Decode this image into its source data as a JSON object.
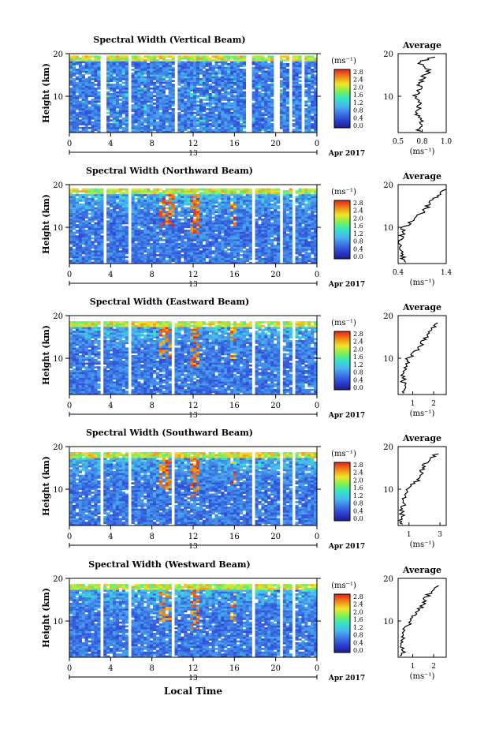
{
  "figure": {
    "xlabel": "Local Time",
    "date_label": "Apr 2017",
    "day_label": "13",
    "colorbar_unit": "(ms⁻¹)",
    "colorbar_ticks": [
      "2.8",
      "2.4",
      "2.0",
      "1.6",
      "1.2",
      "0.8",
      "0.4",
      "0.0"
    ],
    "avg_title": "Average",
    "avg_xlabel": "(ms⁻¹)",
    "ylabel": "Height (km)"
  },
  "chart_data": [
    {
      "type": "heatmap",
      "title": "Spectral Width (Vertical Beam)",
      "ylabel": "Height (km)",
      "x_ticks": [
        "0",
        "4",
        "8",
        "12",
        "16",
        "20",
        "0"
      ],
      "xlim": [
        0,
        24
      ],
      "ylim": [
        1.5,
        20
      ],
      "y_ticks": [
        "20",
        "10"
      ],
      "colorbar": {
        "min": 0.0,
        "max": 3.0,
        "unit": "ms^-1"
      },
      "data_gaps_hours": [
        [
          3.0,
          3.6
        ],
        [
          5.8,
          6.1
        ],
        [
          10.2,
          10.5
        ],
        [
          12.8,
          13.0
        ],
        [
          17.2,
          17.6
        ],
        [
          19.8,
          20.5
        ],
        [
          21.3,
          21.5
        ],
        [
          22.6,
          22.9
        ]
      ],
      "top_height_km": 19.5,
      "average": {
        "xlim": [
          0.5,
          1.0
        ],
        "x_ticks": [
          "0.5",
          "0.8",
          "1.0"
        ],
        "x_tick_values": [
          0.5,
          0.75,
          1.0
        ],
        "heights": [
          2,
          4,
          6,
          8,
          10,
          12,
          14,
          16,
          18,
          19.5
        ],
        "values": [
          0.72,
          0.74,
          0.7,
          0.73,
          0.68,
          0.72,
          0.74,
          0.82,
          0.72,
          0.9
        ]
      }
    },
    {
      "type": "heatmap",
      "title": "Spectral Width (Northward Beam)",
      "ylabel": "Height (km)",
      "x_ticks": [
        "0",
        "4",
        "8",
        "12",
        "16",
        "20",
        "0"
      ],
      "xlim": [
        0,
        24
      ],
      "ylim": [
        1.5,
        20
      ],
      "y_ticks": [
        "20",
        "10"
      ],
      "colorbar": {
        "min": 0.0,
        "max": 3.0,
        "unit": "ms^-1"
      },
      "data_gaps_hours": [
        [
          3.3,
          3.6
        ],
        [
          5.8,
          6.1
        ],
        [
          17.8,
          18.1
        ],
        [
          20.3,
          20.6
        ],
        [
          21.5,
          21.8
        ]
      ],
      "top_height_km": 19,
      "average": {
        "xlim": [
          0.4,
          1.4
        ],
        "x_ticks": [
          "0.4",
          "1.4"
        ],
        "x_tick_values": [
          0.4,
          1.4
        ],
        "heights": [
          2,
          4,
          6,
          8,
          10,
          12,
          14,
          16,
          18,
          19
        ],
        "values": [
          0.5,
          0.48,
          0.45,
          0.47,
          0.52,
          0.75,
          0.95,
          1.1,
          1.3,
          1.35
        ]
      }
    },
    {
      "type": "heatmap",
      "title": "Spectral Width (Eastward Beam)",
      "ylabel": "Height (km)",
      "x_ticks": [
        "0",
        "4",
        "8",
        "12",
        "16",
        "20",
        "0"
      ],
      "xlim": [
        0,
        24
      ],
      "ylim": [
        1.5,
        20
      ],
      "y_ticks": [
        "20",
        "10"
      ],
      "colorbar": {
        "min": 0.0,
        "max": 3.0,
        "unit": "ms^-1"
      },
      "data_gaps_hours": [
        [
          3.0,
          3.4
        ],
        [
          5.8,
          6.1
        ],
        [
          9.8,
          10.2
        ],
        [
          17.8,
          18.1
        ],
        [
          20.3,
          20.6
        ],
        [
          21.5,
          21.8
        ]
      ],
      "top_height_km": 18.5,
      "average": {
        "xlim": [
          0.3,
          2.6
        ],
        "x_ticks": [
          "1",
          "2"
        ],
        "x_tick_values": [
          1,
          2
        ],
        "heights": [
          2,
          4,
          6,
          8,
          10,
          12,
          14,
          16,
          18,
          18.5
        ],
        "values": [
          0.5,
          0.55,
          0.55,
          0.6,
          0.8,
          1.2,
          1.5,
          1.8,
          2.2,
          2.4
        ]
      }
    },
    {
      "type": "heatmap",
      "title": "Spectral Width (Southward Beam)",
      "ylabel": "Height (km)",
      "x_ticks": [
        "0",
        "4",
        "8",
        "12",
        "16",
        "20",
        "0"
      ],
      "xlim": [
        0,
        24
      ],
      "ylim": [
        1.5,
        20
      ],
      "y_ticks": [
        "20",
        "10"
      ],
      "colorbar": {
        "min": 0.0,
        "max": 3.0,
        "unit": "ms^-1"
      },
      "data_gaps_hours": [
        [
          3.0,
          3.4
        ],
        [
          5.8,
          6.1
        ],
        [
          9.8,
          10.2
        ],
        [
          17.8,
          18.1
        ],
        [
          20.3,
          20.6
        ],
        [
          21.5,
          21.8
        ]
      ],
      "top_height_km": 18.5,
      "average": {
        "xlim": [
          0.3,
          3.4
        ],
        "x_ticks": [
          "1",
          "3"
        ],
        "x_tick_values": [
          1,
          3
        ],
        "heights": [
          2,
          4,
          6,
          8,
          10,
          12,
          14,
          16,
          18,
          18.5
        ],
        "values": [
          0.5,
          0.55,
          0.6,
          0.65,
          0.9,
          1.5,
          1.8,
          2.0,
          2.6,
          3.0
        ]
      }
    },
    {
      "type": "heatmap",
      "title": "Spectral Width (Westward Beam)",
      "ylabel": "Height (km)",
      "x_ticks": [
        "0",
        "4",
        "8",
        "12",
        "16",
        "20",
        "0"
      ],
      "xlim": [
        0,
        24
      ],
      "ylim": [
        1.5,
        20
      ],
      "y_ticks": [
        "20",
        "10"
      ],
      "colorbar": {
        "min": 0.0,
        "max": 3.0,
        "unit": "ms^-1"
      },
      "data_gaps_hours": [
        [
          3.0,
          3.4
        ],
        [
          5.8,
          6.1
        ],
        [
          9.8,
          10.2
        ],
        [
          17.8,
          18.1
        ],
        [
          20.3,
          20.6
        ],
        [
          21.5,
          21.8
        ]
      ],
      "top_height_km": 18.5,
      "average": {
        "xlim": [
          0.3,
          2.6
        ],
        "x_ticks": [
          "1",
          "2"
        ],
        "x_tick_values": [
          1,
          2
        ],
        "heights": [
          2,
          4,
          6,
          8,
          10,
          12,
          14,
          16,
          17,
          18.5
        ],
        "values": [
          0.5,
          0.55,
          0.55,
          0.65,
          0.9,
          1.2,
          1.5,
          1.7,
          2.0,
          2.3
        ]
      }
    }
  ]
}
